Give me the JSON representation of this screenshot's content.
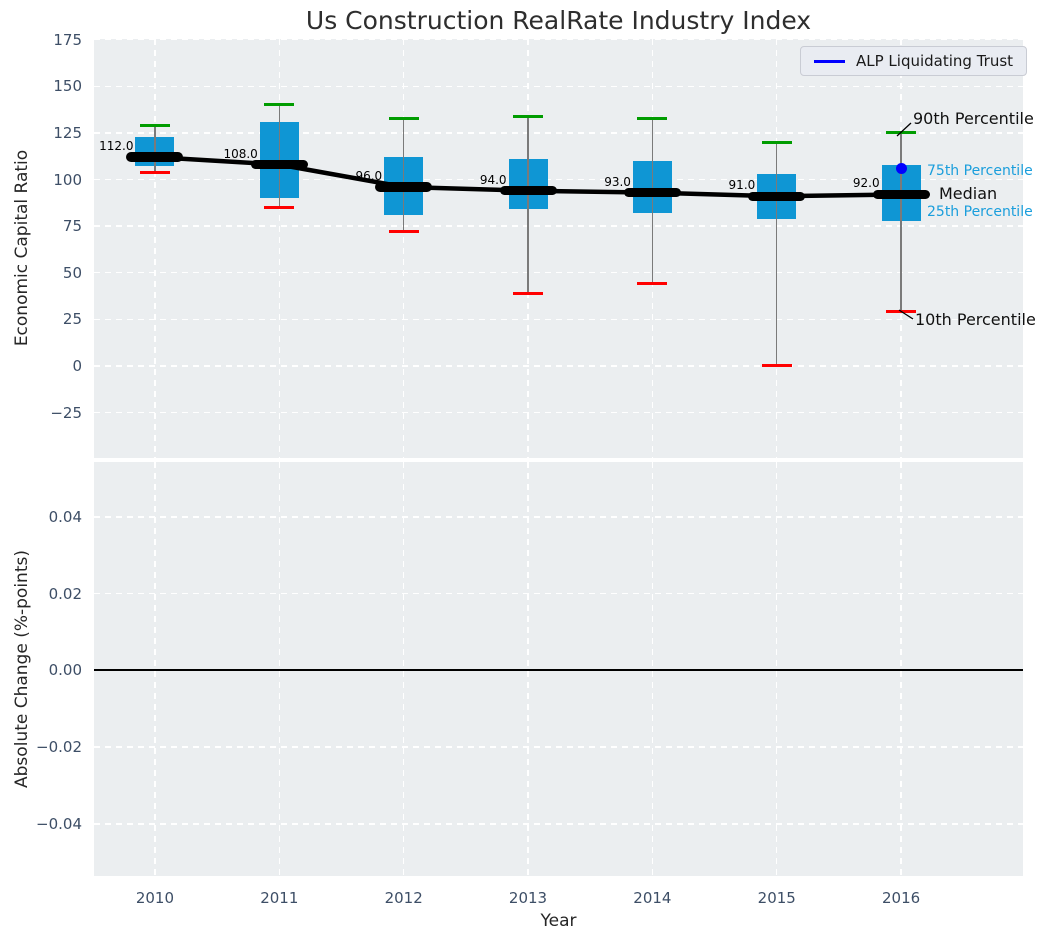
{
  "title": "Us Construction RealRate Industry Index",
  "legend": {
    "label": "ALP Liquidating Trust"
  },
  "colors": {
    "box_fill": "#0f96d4",
    "whisker": "#7a7a7a",
    "cap_top_green": "#009c00",
    "cap_bottom_red": "#ff0000",
    "median_line": "#000000",
    "overlay_series_blue": "#0000ff",
    "percentile_label_blue": "#1a9edc",
    "axes_background": "#ebeef0",
    "grid": "#ffffff",
    "tick_text": "#3d4e66"
  },
  "chart_data": {
    "type": "box",
    "title": "Us Construction RealRate Industry Index",
    "xlabel": "Year",
    "top_panel": {
      "ylabel": "Economic Capital Ratio",
      "ylim": [
        -49.4,
        175.4
      ],
      "xlim": [
        2009.51,
        2016.98
      ],
      "grid": "white dashed, on",
      "yticks": [
        {
          "v": 175,
          "label": "175"
        },
        {
          "v": 150,
          "label": "150"
        },
        {
          "v": 125,
          "label": "125"
        },
        {
          "v": 100,
          "label": "100"
        },
        {
          "v": 75,
          "label": "75"
        },
        {
          "v": 50,
          "label": "50"
        },
        {
          "v": 25,
          "label": "25"
        },
        {
          "v": 0,
          "label": "0"
        },
        {
          "v": -25,
          "label": "−25"
        }
      ],
      "xticks": [
        {
          "v": 2010,
          "label": "2010"
        },
        {
          "v": 2011,
          "label": "2011"
        },
        {
          "v": 2012,
          "label": "2012"
        },
        {
          "v": 2013,
          "label": "2013"
        },
        {
          "v": 2014,
          "label": "2014"
        },
        {
          "v": 2015,
          "label": "2015"
        },
        {
          "v": 2016,
          "label": "2016"
        }
      ],
      "boxes": [
        {
          "year": 2010,
          "median": 112.0,
          "median_label": "112.0",
          "q1": 107,
          "q3": 123,
          "p10": 104,
          "p90": 129
        },
        {
          "year": 2011,
          "median": 108.0,
          "median_label": "108.0",
          "q1": 90,
          "q3": 131,
          "p10": 85,
          "p90": 140
        },
        {
          "year": 2012,
          "median": 96.0,
          "median_label": "96.0",
          "q1": 81,
          "q3": 112,
          "p10": 72,
          "p90": 133
        },
        {
          "year": 2013,
          "median": 94.0,
          "median_label": "94.0",
          "q1": 84,
          "q3": 111,
          "p10": 39,
          "p90": 134
        },
        {
          "year": 2014,
          "median": 93.0,
          "median_label": "93.0",
          "q1": 82,
          "q3": 110,
          "p10": 44,
          "p90": 133
        },
        {
          "year": 2015,
          "median": 91.0,
          "median_label": "91.0",
          "q1": 79,
          "q3": 103,
          "p10": 0,
          "p90": 120
        },
        {
          "year": 2016,
          "median": 92.0,
          "median_label": "92.0",
          "q1": 78,
          "q3": 108,
          "p10": 29,
          "p90": 125
        }
      ],
      "overlay_point": {
        "series": "ALP Liquidating Trust",
        "x": 2016,
        "y": 106
      },
      "annotations": [
        {
          "id": "p90",
          "label": "90th Percentile"
        },
        {
          "id": "p75",
          "label": "75th Percentile"
        },
        {
          "id": "median",
          "label": "Median"
        },
        {
          "id": "p25",
          "label": "25th Percentile"
        },
        {
          "id": "p10",
          "label": "10th Percentile"
        }
      ],
      "legend_position": "upper right"
    },
    "bottom_panel": {
      "ylabel": "Absolute Change (%-points)",
      "ylim": [
        -0.0536,
        0.0543
      ],
      "yticks": [
        {
          "v": 0.04,
          "label": "0.04"
        },
        {
          "v": 0.02,
          "label": "0.02"
        },
        {
          "v": 0.0,
          "label": "0.00"
        },
        {
          "v": -0.02,
          "label": "−0.02"
        },
        {
          "v": -0.04,
          "label": "−0.04"
        }
      ],
      "zero_line": 0.0,
      "series": []
    }
  }
}
